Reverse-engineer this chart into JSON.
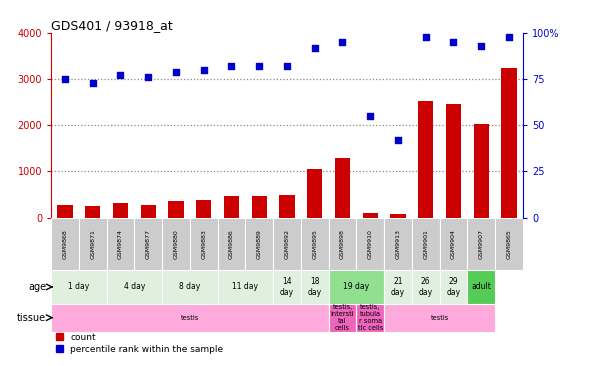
{
  "title": "GDS401 / 93918_at",
  "samples": [
    "GSM9868",
    "GSM9871",
    "GSM9874",
    "GSM9877",
    "GSM9880",
    "GSM9883",
    "GSM9886",
    "GSM9889",
    "GSM9892",
    "GSM9895",
    "GSM9898",
    "GSM9910",
    "GSM9913",
    "GSM9901",
    "GSM9904",
    "GSM9907",
    "GSM9865"
  ],
  "counts": [
    280,
    260,
    310,
    280,
    370,
    390,
    460,
    470,
    490,
    1050,
    1300,
    100,
    80,
    2530,
    2470,
    2020,
    3230
  ],
  "percentiles": [
    75,
    73,
    77,
    76,
    79,
    80,
    82,
    82,
    82,
    92,
    95,
    55,
    42,
    98,
    95,
    93,
    98
  ],
  "ylim_left": [
    0,
    4000
  ],
  "ylim_right": [
    0,
    100
  ],
  "yticks_left": [
    0,
    1000,
    2000,
    3000,
    4000
  ],
  "yticks_right": [
    0,
    25,
    50,
    75,
    100
  ],
  "age_groups": [
    {
      "label": "1 day",
      "start": 0,
      "end": 2,
      "color": "#dff0df"
    },
    {
      "label": "4 day",
      "start": 2,
      "end": 4,
      "color": "#dff0df"
    },
    {
      "label": "8 day",
      "start": 4,
      "end": 6,
      "color": "#dff0df"
    },
    {
      "label": "11 day",
      "start": 6,
      "end": 8,
      "color": "#dff0df"
    },
    {
      "label": "14\nday",
      "start": 8,
      "end": 9,
      "color": "#dff0df"
    },
    {
      "label": "18\nday",
      "start": 9,
      "end": 10,
      "color": "#dff0df"
    },
    {
      "label": "19 day",
      "start": 10,
      "end": 12,
      "color": "#90e090"
    },
    {
      "label": "21\nday",
      "start": 12,
      "end": 13,
      "color": "#dff0df"
    },
    {
      "label": "26\nday",
      "start": 13,
      "end": 14,
      "color": "#dff0df"
    },
    {
      "label": "29\nday",
      "start": 14,
      "end": 15,
      "color": "#dff0df"
    },
    {
      "label": "adult",
      "start": 15,
      "end": 16,
      "color": "#55cc55"
    }
  ],
  "tissue_groups": [
    {
      "label": "testis",
      "start": 0,
      "end": 10,
      "color": "#ffaadd"
    },
    {
      "label": "testis,\nintersti\ntal\ncells",
      "start": 10,
      "end": 11,
      "color": "#ee66bb"
    },
    {
      "label": "testis,\ntubula\nr soma\ntic cells",
      "start": 11,
      "end": 12,
      "color": "#ee66bb"
    },
    {
      "label": "testis",
      "start": 12,
      "end": 16,
      "color": "#ffaadd"
    }
  ],
  "bar_color": "#cc0000",
  "dot_color": "#0000cc",
  "grid_color": "#888888",
  "axis_color_left": "#cc0000",
  "axis_color_right": "#0000cc",
  "sample_box_color": "#cccccc",
  "background_color": "#ffffff"
}
